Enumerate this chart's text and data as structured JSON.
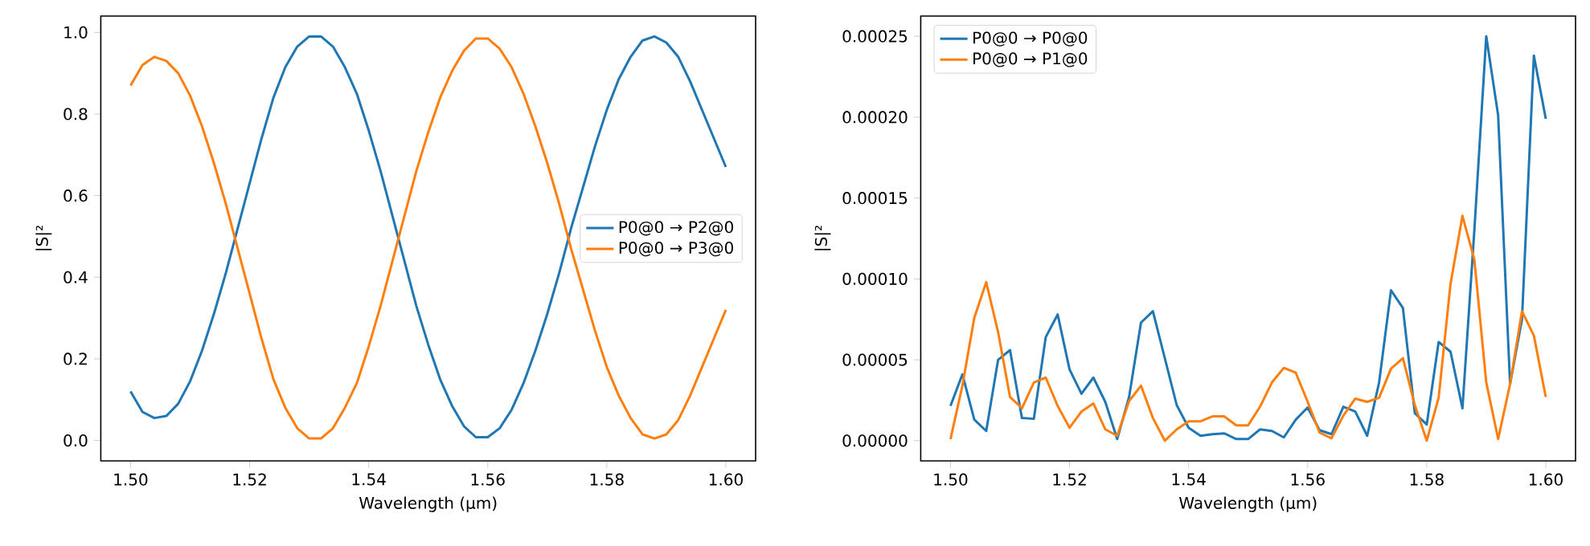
{
  "chart_data": [
    {
      "type": "line",
      "xlabel": "Wavelength (μm)",
      "ylabel": "|S|²",
      "legend": "center right",
      "x": [
        1.5,
        1.502,
        1.504,
        1.506,
        1.508,
        1.51,
        1.512,
        1.514,
        1.516,
        1.518,
        1.52,
        1.522,
        1.524,
        1.526,
        1.528,
        1.53,
        1.532,
        1.534,
        1.536,
        1.538,
        1.54,
        1.542,
        1.544,
        1.546,
        1.548,
        1.55,
        1.552,
        1.554,
        1.556,
        1.558,
        1.56,
        1.562,
        1.564,
        1.566,
        1.568,
        1.57,
        1.572,
        1.574,
        1.576,
        1.578,
        1.58,
        1.582,
        1.584,
        1.586,
        1.588,
        1.59,
        1.592,
        1.594,
        1.596,
        1.598,
        1.6
      ],
      "xlim": [
        1.495,
        1.605
      ],
      "ylim": [
        -0.05,
        1.04
      ],
      "xticks": [
        {
          "value": 1.5,
          "label": "1.50"
        },
        {
          "value": 1.52,
          "label": "1.52"
        },
        {
          "value": 1.54,
          "label": "1.54"
        },
        {
          "value": 1.56,
          "label": "1.56"
        },
        {
          "value": 1.58,
          "label": "1.58"
        },
        {
          "value": 1.6,
          "label": "1.60"
        }
      ],
      "yticks": [
        {
          "value": 0.0,
          "label": "0.0"
        },
        {
          "value": 0.2,
          "label": "0.2"
        },
        {
          "value": 0.4,
          "label": "0.4"
        },
        {
          "value": 0.6,
          "label": "0.6"
        },
        {
          "value": 0.8,
          "label": "0.8"
        },
        {
          "value": 1.0,
          "label": "1.0"
        }
      ],
      "series": [
        {
          "name": "P0@0 → P2@0",
          "color": "#1f77b4",
          "values": [
            0.12,
            0.07,
            0.055,
            0.06,
            0.09,
            0.145,
            0.22,
            0.31,
            0.41,
            0.52,
            0.63,
            0.74,
            0.84,
            0.915,
            0.965,
            0.99,
            0.99,
            0.965,
            0.915,
            0.85,
            0.76,
            0.66,
            0.55,
            0.44,
            0.33,
            0.235,
            0.15,
            0.085,
            0.035,
            0.008,
            0.008,
            0.03,
            0.075,
            0.14,
            0.22,
            0.31,
            0.41,
            0.52,
            0.62,
            0.72,
            0.81,
            0.885,
            0.94,
            0.98,
            0.99,
            0.975,
            0.94,
            0.88,
            0.81,
            0.74,
            0.67
          ]
        },
        {
          "name": "P0@0 → P3@0",
          "color": "#ff7f0e",
          "values": [
            0.87,
            0.92,
            0.94,
            0.93,
            0.9,
            0.845,
            0.77,
            0.68,
            0.58,
            0.47,
            0.36,
            0.25,
            0.15,
            0.08,
            0.03,
            0.005,
            0.005,
            0.03,
            0.08,
            0.14,
            0.23,
            0.33,
            0.44,
            0.55,
            0.66,
            0.755,
            0.84,
            0.905,
            0.955,
            0.985,
            0.985,
            0.96,
            0.915,
            0.85,
            0.77,
            0.68,
            0.58,
            0.47,
            0.37,
            0.27,
            0.18,
            0.11,
            0.055,
            0.015,
            0.005,
            0.015,
            0.05,
            0.11,
            0.18,
            0.25,
            0.32
          ]
        }
      ]
    },
    {
      "type": "line",
      "xlabel": "Wavelength (μm)",
      "ylabel": "|S|²",
      "legend": "top left",
      "x": [
        1.5,
        1.502,
        1.504,
        1.506,
        1.508,
        1.51,
        1.512,
        1.514,
        1.516,
        1.518,
        1.52,
        1.522,
        1.524,
        1.526,
        1.528,
        1.53,
        1.532,
        1.534,
        1.536,
        1.538,
        1.54,
        1.542,
        1.544,
        1.546,
        1.548,
        1.55,
        1.552,
        1.554,
        1.556,
        1.558,
        1.56,
        1.562,
        1.564,
        1.566,
        1.568,
        1.57,
        1.572,
        1.574,
        1.576,
        1.578,
        1.58,
        1.582,
        1.584,
        1.586,
        1.588,
        1.59,
        1.592,
        1.594,
        1.596,
        1.598,
        1.6
      ],
      "xlim": [
        1.495,
        1.605
      ],
      "ylim": [
        -1.25e-05,
        0.0002625
      ],
      "xticks": [
        {
          "value": 1.5,
          "label": "1.50"
        },
        {
          "value": 1.52,
          "label": "1.52"
        },
        {
          "value": 1.54,
          "label": "1.54"
        },
        {
          "value": 1.56,
          "label": "1.56"
        },
        {
          "value": 1.58,
          "label": "1.58"
        },
        {
          "value": 1.6,
          "label": "1.60"
        }
      ],
      "yticks": [
        {
          "value": 0.0,
          "label": "0.00000"
        },
        {
          "value": 5e-05,
          "label": "0.00005"
        },
        {
          "value": 0.0001,
          "label": "0.00010"
        },
        {
          "value": 0.00015,
          "label": "0.00015"
        },
        {
          "value": 0.0002,
          "label": "0.00020"
        },
        {
          "value": 0.00025,
          "label": "0.00025"
        }
      ],
      "series": [
        {
          "name": "P0@0 → P0@0",
          "color": "#1f77b4",
          "values": [
            2.15e-05,
            4.1e-05,
            1.3e-05,
            6e-06,
            5e-05,
            5.6e-05,
            1.4e-05,
            1.35e-05,
            6.4e-05,
            7.8e-05,
            4.4e-05,
            2.9e-05,
            3.9e-05,
            2.4e-05,
            1e-06,
            2.7e-05,
            7.3e-05,
            8e-05,
            5.1e-05,
            2.2e-05,
            8e-06,
            3e-06,
            4e-06,
            4.5e-06,
            1e-06,
            1e-06,
            7e-06,
            6e-06,
            2e-06,
            1.3e-05,
            2.05e-05,
            6.5e-06,
            4e-06,
            2.1e-05,
            1.8e-05,
            3e-06,
            3.6e-05,
            9.3e-05,
            8.2e-05,
            1.7e-05,
            1e-05,
            6.1e-05,
            5.5e-05,
            2e-05,
            0.00013,
            0.00025,
            0.000201,
            3.5e-05,
            7.5e-05,
            0.000238,
            0.000199
          ]
        },
        {
          "name": "P0@0 → P1@0",
          "color": "#ff7f0e",
          "values": [
            1e-06,
            3.4e-05,
            7.6e-05,
            9.8e-05,
            6.7e-05,
            2.7e-05,
            2e-05,
            3.6e-05,
            3.9e-05,
            2.15e-05,
            8e-06,
            1.8e-05,
            2.3e-05,
            7e-06,
            3e-06,
            2.45e-05,
            3.4e-05,
            1.4e-05,
            0.0,
            7e-06,
            1.2e-05,
            1.2e-05,
            1.5e-05,
            1.5e-05,
            9.5e-06,
            9.5e-06,
            2.1e-05,
            3.6e-05,
            4.5e-05,
            4.2e-05,
            2.4e-05,
            5e-06,
            1.5e-06,
            1.55e-05,
            2.6e-05,
            2.4e-05,
            2.65e-05,
            4.45e-05,
            5.1e-05,
            2.2e-05,
            0.0,
            2.65e-05,
            9.7e-05,
            0.000139,
            0.000112,
            3.6e-05,
            1e-06,
            3.5e-05,
            8e-05,
            6.5e-05,
            2.7e-05
          ]
        }
      ]
    }
  ]
}
